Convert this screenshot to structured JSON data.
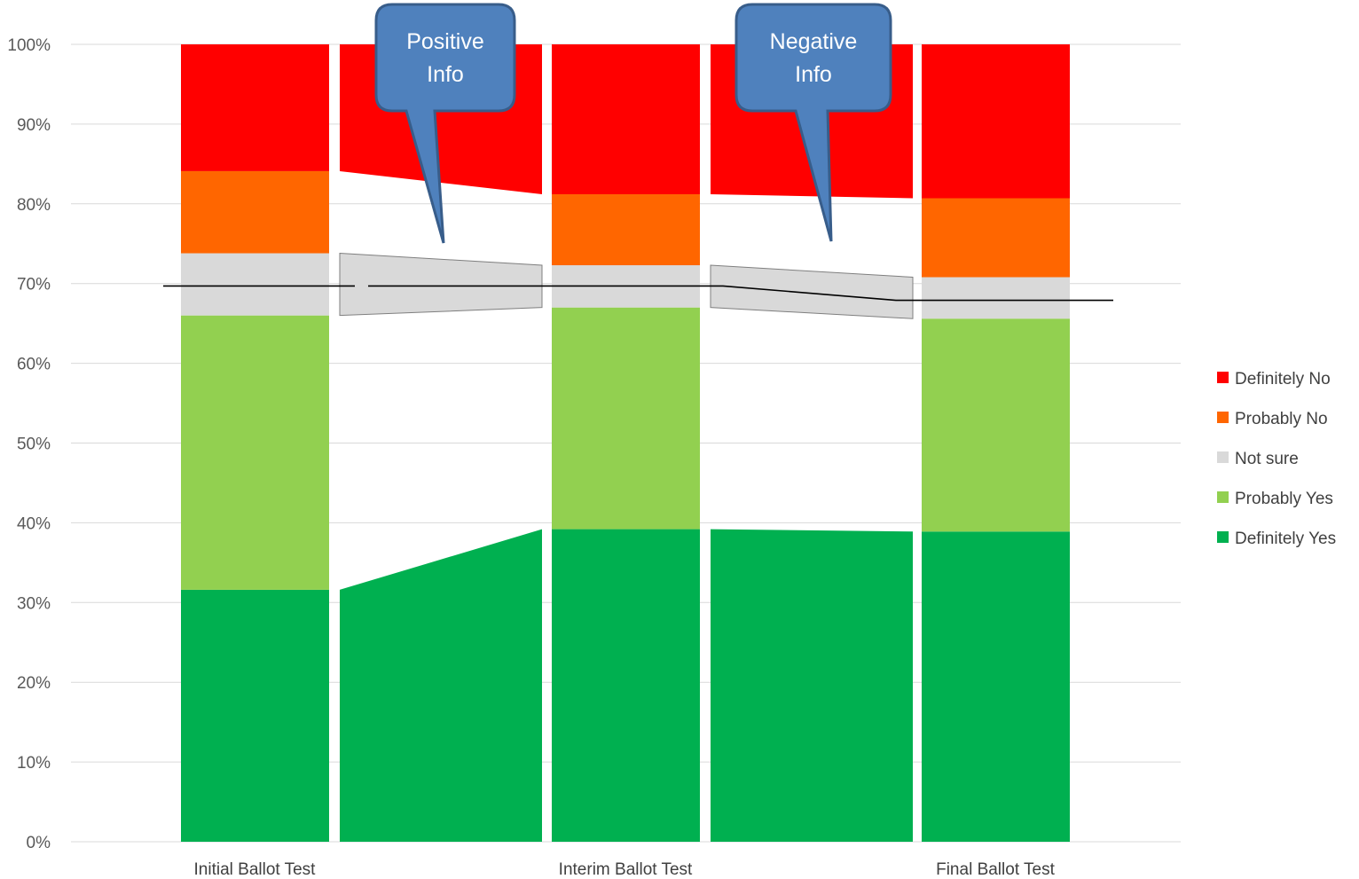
{
  "chart_data": {
    "type": "bar",
    "stacked": true,
    "normalized": true,
    "categories": [
      "Initial Ballot Test",
      "Interim Ballot Test",
      "Final Ballot Test"
    ],
    "series": [
      {
        "name": "Definitely Yes",
        "color": "#00B050",
        "values": [
          31.6,
          39.2,
          38.9
        ]
      },
      {
        "name": "Probably Yes",
        "color": "#92D050",
        "values": [
          34.4,
          27.8,
          26.7
        ]
      },
      {
        "name": "Not sure",
        "color": "#D9D9D9",
        "values": [
          7.8,
          5.3,
          5.2
        ]
      },
      {
        "name": "Probably No",
        "color": "#FF6600",
        "values": [
          10.3,
          8.9,
          9.9
        ]
      },
      {
        "name": "Definitely No",
        "color": "#FF0000",
        "values": [
          15.9,
          18.8,
          19.3
        ]
      }
    ],
    "yticks": [
      "0%",
      "10%",
      "20%",
      "30%",
      "40%",
      "50%",
      "60%",
      "70%",
      "80%",
      "90%",
      "100%"
    ],
    "ylim": [
      0,
      100
    ],
    "grid": true,
    "legend_position": "right",
    "callouts": [
      {
        "text": [
          "Positive",
          "Info"
        ],
        "color": "#4F81BD"
      },
      {
        "text": [
          "Negative",
          "Info"
        ],
        "color": "#4F81BD"
      }
    ],
    "threshold_line": {
      "values": [
        69.7,
        69.7,
        67.9
      ],
      "color": "#000000"
    }
  }
}
